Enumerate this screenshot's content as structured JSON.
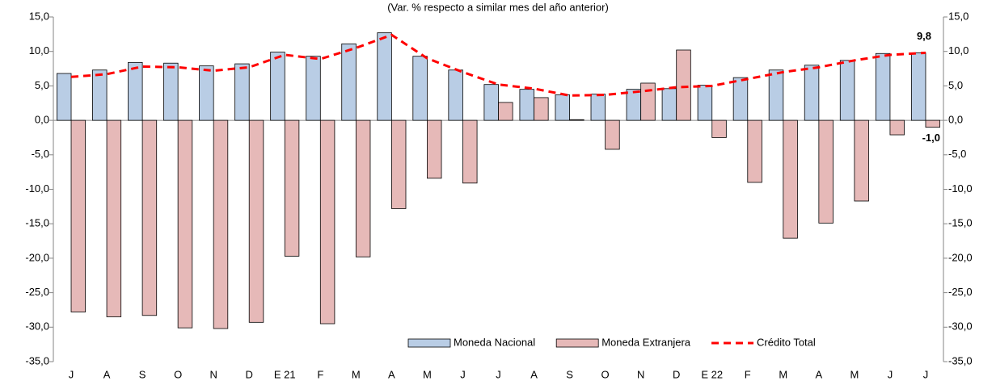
{
  "chart_data": {
    "type": "bar",
    "subtitle": "(Var. % respecto a similar mes del año anterior)",
    "categories": [
      "J",
      "A",
      "S",
      "O",
      "N",
      "D",
      "E 21",
      "F",
      "M",
      "A",
      "M",
      "J",
      "J",
      "A",
      "S",
      "O",
      "N",
      "D",
      "E 22",
      "F",
      "M",
      "A",
      "M",
      "J",
      "J"
    ],
    "series": [
      {
        "name": "Moneda Nacional",
        "type": "bar",
        "color": "#b9cde5",
        "values": [
          6.8,
          7.3,
          8.4,
          8.3,
          7.9,
          8.2,
          9.9,
          9.3,
          11.1,
          12.7,
          9.3,
          7.3,
          5.2,
          4.5,
          3.7,
          3.8,
          4.5,
          4.6,
          5.1,
          6.2,
          7.3,
          8.0,
          8.7,
          9.7,
          9.8
        ]
      },
      {
        "name": "Moneda Extranjera",
        "type": "bar",
        "color": "#e6b9b8",
        "values": [
          -27.8,
          -28.5,
          -28.3,
          -30.1,
          -30.2,
          -29.3,
          -19.7,
          -29.5,
          -19.8,
          -12.8,
          -8.4,
          -9.1,
          2.6,
          3.3,
          0.1,
          -4.2,
          5.4,
          10.2,
          -2.5,
          -9.0,
          -17.1,
          -14.9,
          -11.7,
          -2.1,
          -1.0
        ],
        "value_labels": [
          null,
          null,
          null,
          null,
          null,
          null,
          null,
          null,
          null,
          null,
          null,
          null,
          null,
          null,
          null,
          null,
          null,
          null,
          null,
          null,
          null,
          null,
          null,
          null,
          "-1,0"
        ]
      },
      {
        "name": "Crédito Total",
        "type": "line",
        "color": "#ff0000",
        "values": [
          6.3,
          6.7,
          7.8,
          7.7,
          7.2,
          7.7,
          9.5,
          8.9,
          10.5,
          12.4,
          9.0,
          7.0,
          5.2,
          4.6,
          3.6,
          3.7,
          4.2,
          4.8,
          5.0,
          6.0,
          7.0,
          7.7,
          8.7,
          9.5,
          9.8
        ],
        "value_labels": [
          null,
          null,
          null,
          null,
          null,
          null,
          null,
          null,
          null,
          null,
          null,
          null,
          null,
          null,
          null,
          null,
          null,
          null,
          null,
          null,
          null,
          null,
          null,
          null,
          "9,8"
        ]
      }
    ],
    "ylim": [
      -35,
      15
    ],
    "yticks": [
      {
        "value": 15,
        "label": "15,0"
      },
      {
        "value": 10,
        "label": "10,0"
      },
      {
        "value": 5,
        "label": "5,0"
      },
      {
        "value": 0,
        "label": "0,0"
      },
      {
        "value": -5,
        "label": "-5,0"
      },
      {
        "value": -10,
        "label": "-10,0"
      },
      {
        "value": -15,
        "label": "-15,0"
      },
      {
        "value": -20,
        "label": "-20,0"
      },
      {
        "value": -25,
        "label": "-25,0"
      },
      {
        "value": -30,
        "label": "-30,0"
      },
      {
        "value": -35,
        "label": "-35,0"
      }
    ],
    "y2lim": [
      -35,
      15
    ],
    "y2ticks": [
      {
        "value": 15,
        "label": "15,0"
      },
      {
        "value": 10,
        "label": "10,0"
      },
      {
        "value": 5,
        "label": "5,0"
      },
      {
        "value": 0,
        "label": "0,0"
      },
      {
        "value": -5,
        "label": "-5,0"
      },
      {
        "value": -10,
        "label": "-10,0"
      },
      {
        "value": -15,
        "label": "-15,0"
      },
      {
        "value": -20,
        "label": "-20,0"
      },
      {
        "value": -25,
        "label": "-25,0"
      },
      {
        "value": -30,
        "label": "-30,0"
      },
      {
        "value": -35,
        "label": "-35,0"
      }
    ],
    "legend": "lower-right"
  }
}
